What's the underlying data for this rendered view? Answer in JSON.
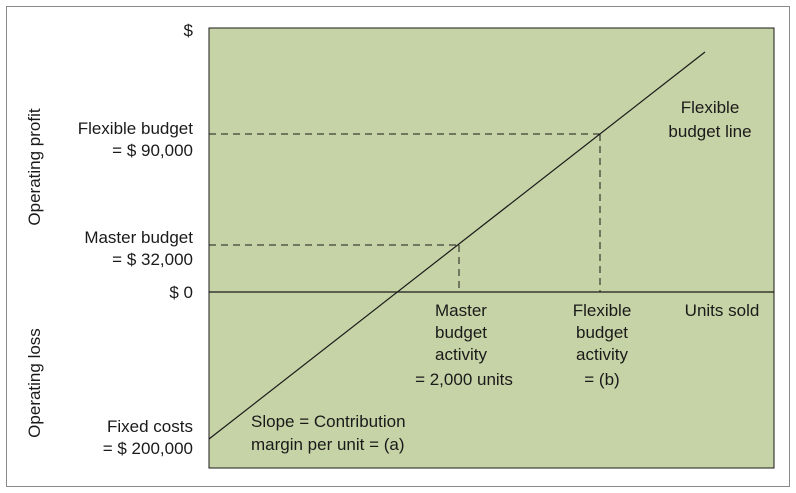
{
  "y_axis": {
    "top_symbol": "$",
    "zero_label": "$ 0",
    "upper_region_label": "Operating profit",
    "lower_region_label": "Operating loss",
    "flexible_budget_line1": "Flexible budget",
    "flexible_budget_line2": "= $ 90,000",
    "master_budget_line1": "Master budget",
    "master_budget_line2": "= $ 32,000",
    "fixed_costs_line1": "Fixed costs",
    "fixed_costs_line2": "= $ 200,000"
  },
  "x_axis": {
    "label": "Units sold",
    "master_activity": [
      "Master",
      "budget",
      "activity",
      "= 2,000 units"
    ],
    "flexible_activity": [
      "Flexible",
      "budget",
      "activity",
      "= (b)"
    ]
  },
  "line": {
    "label_line1": "Flexible",
    "label_line2": "budget line"
  },
  "slope_note": {
    "line1": "Slope = Contribution",
    "line2": "margin per unit = (a)"
  },
  "colors": {
    "plot_background": "#c6d3a6",
    "axis": "#1a1a1a",
    "text": "#1a1a1a"
  }
}
